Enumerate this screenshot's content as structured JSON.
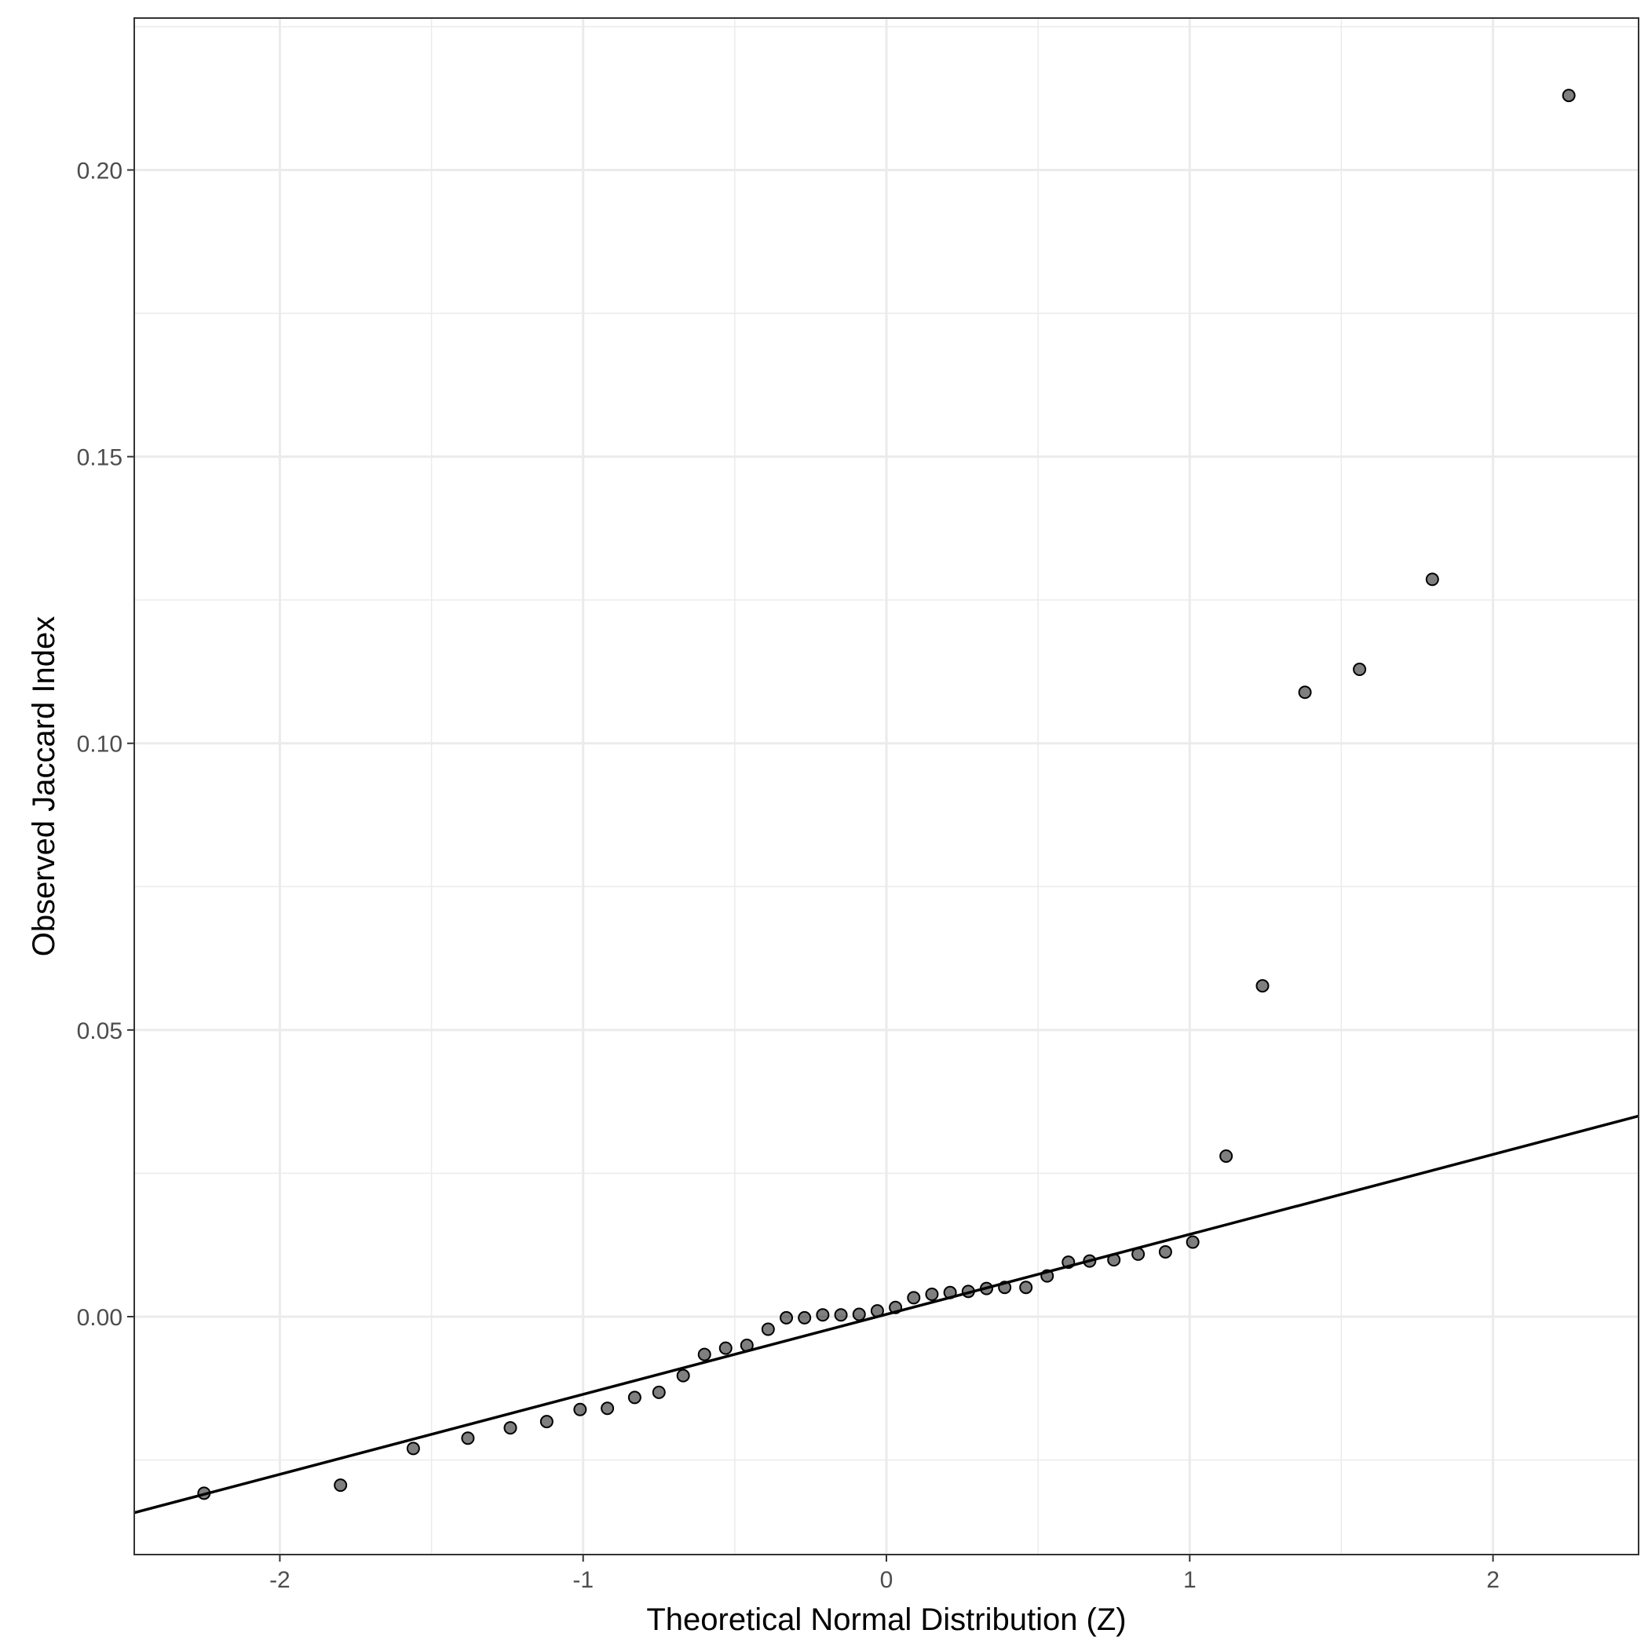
{
  "chart_data": {
    "type": "scatter",
    "xlabel": "Theoretical Normal Distribution (Z)",
    "ylabel": "Observed Jaccard Index",
    "xlim": [
      -2.48,
      2.48
    ],
    "ylim": [
      -0.0415,
      0.2265
    ],
    "x_ticks": [
      -2,
      -1,
      0,
      1,
      2
    ],
    "x_tick_labels": [
      "-2",
      "-1",
      "0",
      "1",
      "2"
    ],
    "y_ticks": [
      0.0,
      0.05,
      0.1,
      0.15,
      0.2
    ],
    "y_tick_labels": [
      "0.00",
      "0.05",
      "0.10",
      "0.15",
      "0.20"
    ],
    "grid": true,
    "reference_line": {
      "slope": 0.01395,
      "intercept": 0.0004
    },
    "points": {
      "x": [
        -2.25,
        -1.8,
        -1.56,
        -1.38,
        -1.24,
        -1.12,
        -1.01,
        -0.92,
        -0.83,
        -0.75,
        -0.67,
        -0.6,
        -0.53,
        -0.46,
        -0.39,
        -0.33,
        -0.27,
        -0.21,
        -0.15,
        -0.09,
        -0.03,
        0.03,
        0.09,
        0.15,
        0.21,
        0.27,
        0.33,
        0.39,
        0.46,
        0.53,
        0.6,
        0.67,
        0.75,
        0.83,
        0.92,
        1.01,
        1.12,
        1.24,
        1.38,
        1.56,
        1.8,
        2.25
      ],
      "y": [
        -0.0308,
        -0.0294,
        -0.023,
        -0.0212,
        -0.0194,
        -0.0183,
        -0.0162,
        -0.016,
        -0.0141,
        -0.0132,
        -0.0103,
        -0.0066,
        -0.0055,
        -0.005,
        -0.0022,
        -0.0002,
        -0.0002,
        0.0003,
        0.0003,
        0.0004,
        0.001,
        0.0016,
        0.0033,
        0.0039,
        0.0042,
        0.0044,
        0.0049,
        0.0051,
        0.0051,
        0.0071,
        0.0095,
        0.0097,
        0.0099,
        0.0109,
        0.0113,
        0.013,
        0.028,
        0.0577,
        0.1089,
        0.1129,
        0.1286,
        0.213
      ]
    }
  }
}
